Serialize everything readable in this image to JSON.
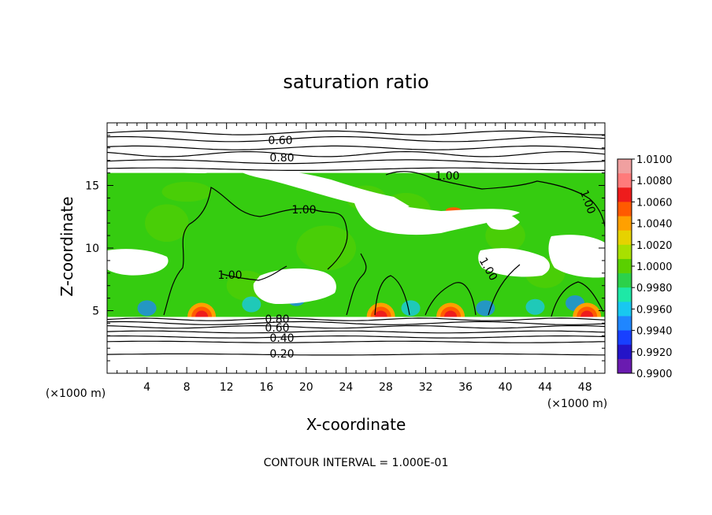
{
  "chart_data": {
    "type": "heatmap",
    "title": "saturation ratio",
    "xlabel": "X-coordinate",
    "ylabel": "Z-coordinate",
    "x_unit": "(×1000 m)",
    "y_unit": "(×1000 m)",
    "x_range": [
      0,
      50
    ],
    "y_range": [
      0,
      20
    ],
    "x_ticks": [
      "4",
      "8",
      "12",
      "16",
      "20",
      "24",
      "28",
      "32",
      "36",
      "40",
      "44",
      "48"
    ],
    "y_ticks": [
      "5",
      "10",
      "15"
    ],
    "colorbar": {
      "range": [
        0.99,
        1.01
      ],
      "labels": [
        "1.0100",
        "1.0080",
        "1.0060",
        "1.0040",
        "1.0020",
        "1.0000",
        "0.9980",
        "0.9960",
        "0.9940",
        "0.9920",
        "0.9900"
      ],
      "colors": [
        "#f0a0a0",
        "#ff7b7b",
        "#ee1c1c",
        "#ff5a00",
        "#ffa000",
        "#e6d200",
        "#a8e000",
        "#5ad000",
        "#2cd14a",
        "#1ee8a6",
        "#18c8f0",
        "#1f86ff",
        "#1840ff",
        "#2414c8",
        "#6a1bb0"
      ]
    },
    "contour_labels": [
      "0.60",
      "0.80",
      "1.00",
      "1.00",
      "1.00",
      "1.00",
      "1.00",
      "0.80",
      "0.60",
      "0.40",
      "0.20"
    ],
    "footer": "CONTOUR INTERVAL = 1.000E-01"
  }
}
